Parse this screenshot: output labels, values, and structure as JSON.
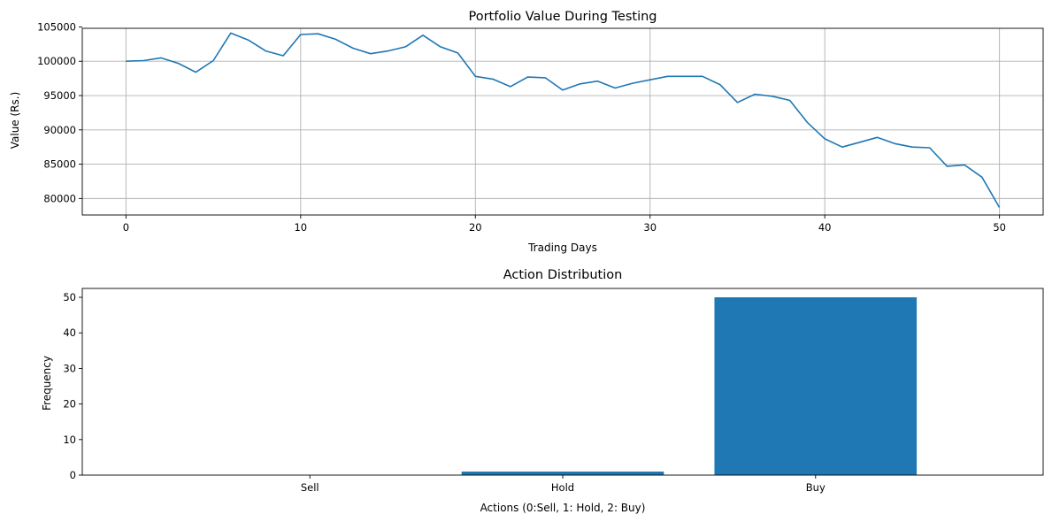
{
  "chart_data": [
    {
      "type": "line",
      "title": "Portfolio Value During Testing",
      "xlabel": "Trading Days",
      "ylabel": "Value (Rs.)",
      "xlim": [
        -2.5,
        52.5
      ],
      "ylim": [
        77600,
        104800
      ],
      "xticks": [
        0,
        10,
        20,
        30,
        40,
        50
      ],
      "yticks": [
        80000,
        85000,
        90000,
        95000,
        100000,
        105000
      ],
      "grid": true,
      "series": [
        {
          "color": "#1f77b4",
          "x": [
            0,
            1,
            2,
            3,
            4,
            5,
            6,
            7,
            8,
            9,
            10,
            11,
            12,
            13,
            14,
            15,
            16,
            17,
            18,
            19,
            20,
            21,
            22,
            23,
            24,
            25,
            26,
            27,
            28,
            29,
            30,
            31,
            32,
            33,
            34,
            35,
            36,
            37,
            38,
            39,
            40,
            41,
            42,
            43,
            44,
            45,
            46,
            47,
            48,
            49,
            50
          ],
          "values": [
            100000,
            100100,
            100500,
            99700,
            98400,
            100100,
            104100,
            103100,
            101500,
            100800,
            103900,
            104000,
            103200,
            101900,
            101100,
            101500,
            102100,
            103800,
            102100,
            101200,
            97800,
            97400,
            96300,
            97700,
            97600,
            95800,
            96700,
            97100,
            96100,
            96800,
            97300,
            97800,
            97800,
            97800,
            96600,
            94000,
            95200,
            94900,
            94300,
            91100,
            88700,
            87500,
            88200,
            88900,
            88000,
            87500,
            87400,
            84700,
            84900,
            83100,
            78700
          ]
        }
      ]
    },
    {
      "type": "bar",
      "title": "Action Distribution",
      "xlabel": "Actions (0:Sell, 1: Hold, 2: Buy)",
      "ylabel": "Frequency",
      "categories": [
        "Sell",
        "Hold",
        "Buy"
      ],
      "values": [
        0,
        1,
        50
      ],
      "ylim": [
        0,
        52.5
      ],
      "yticks": [
        0,
        10,
        20,
        30,
        40,
        50
      ],
      "color": "#1f77b4",
      "grid": false
    }
  ]
}
